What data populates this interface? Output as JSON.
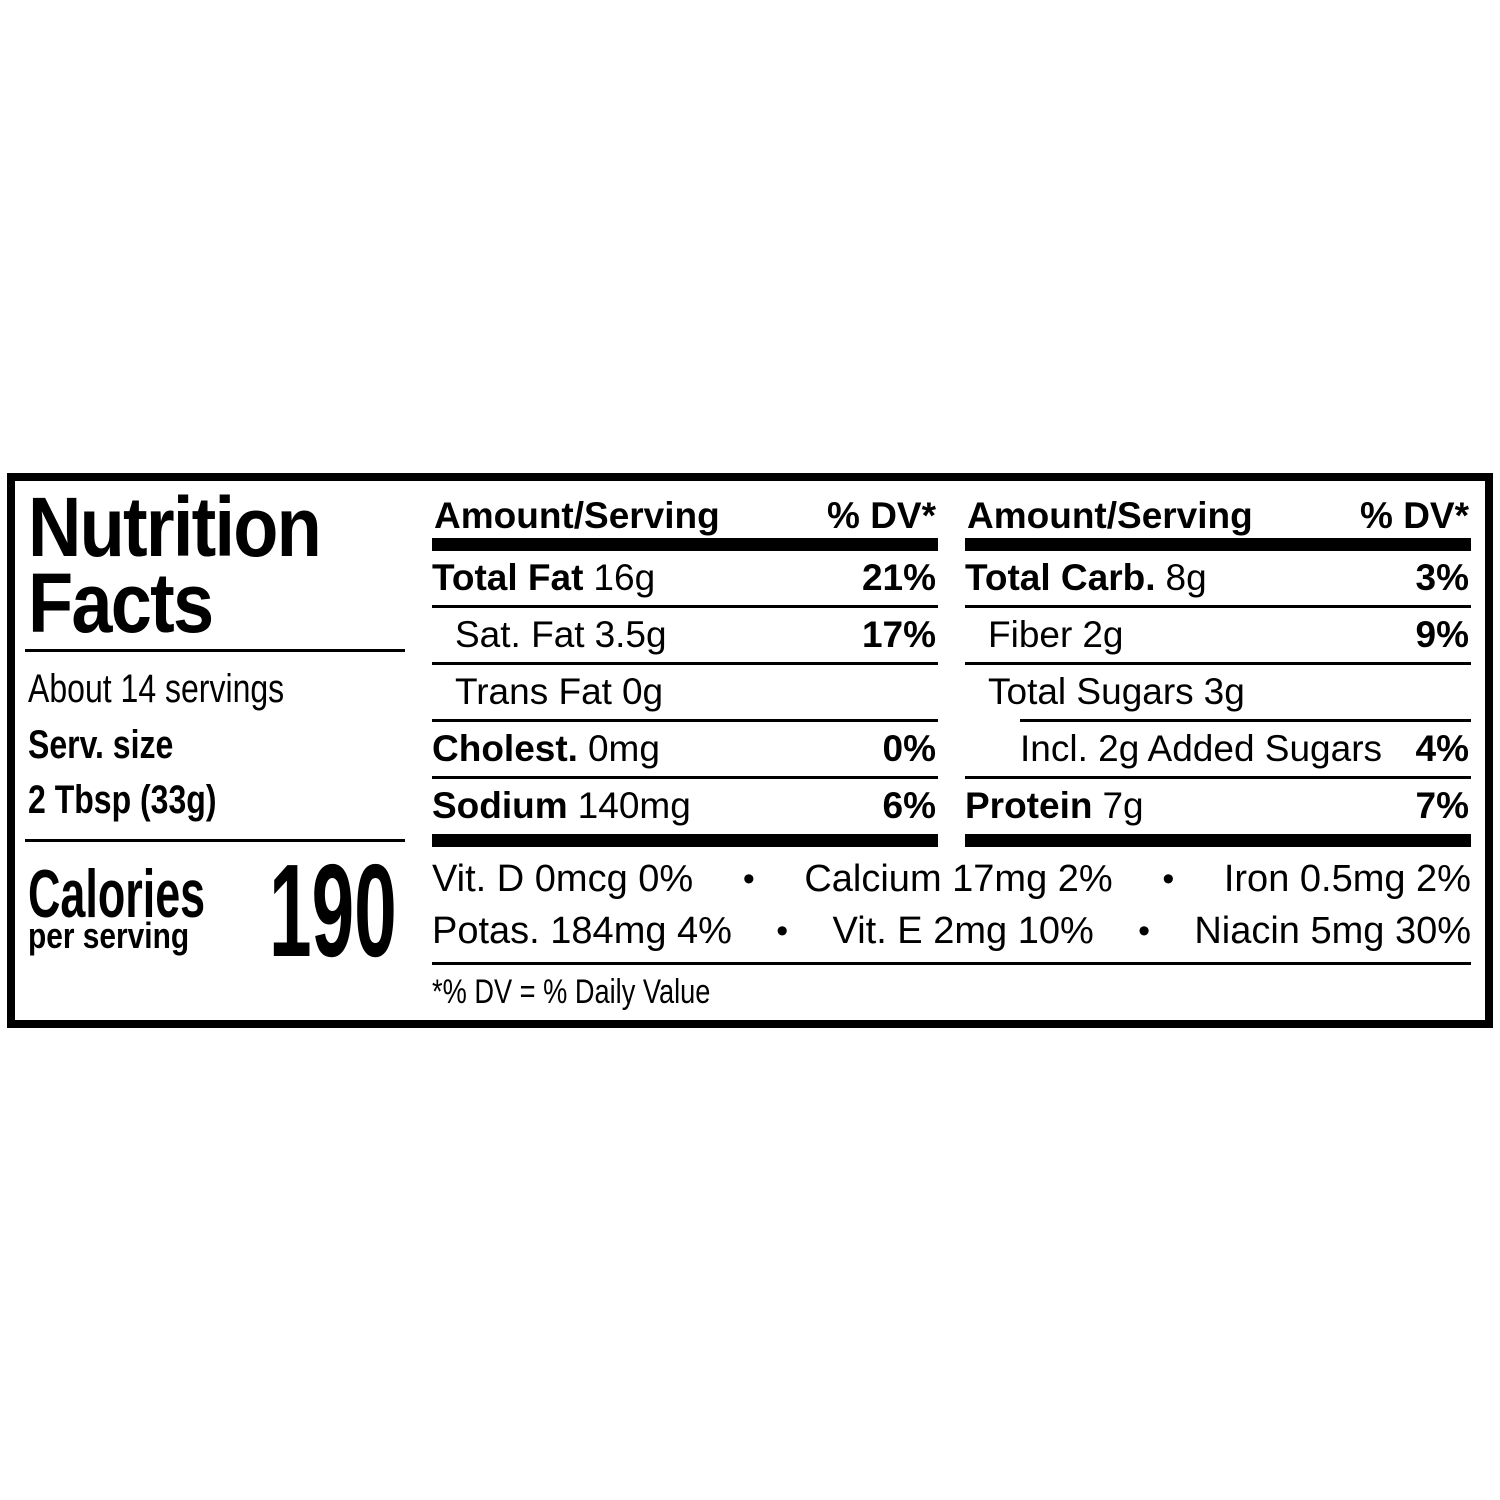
{
  "label": {
    "title_line1": "Nutrition",
    "title_line2": "Facts",
    "servings_per_container": "About 14 servings",
    "serving_size_label": "Serv. size",
    "serving_size_value": "2 Tbsp (33g)",
    "calories_label": "Calories",
    "calories_sublabel": "per serving",
    "calories_value": "190",
    "columns": [
      {
        "header_amount": "Amount/Serving",
        "header_dv": "% DV*",
        "rows": [
          {
            "name": "Total Fat",
            "amount": "16g",
            "dv": "21%"
          },
          {
            "name": "Sat. Fat",
            "amount": "3.5g",
            "dv": "17%"
          },
          {
            "name": "Trans Fat",
            "amount": "0g",
            "dv": ""
          },
          {
            "name": "Cholest.",
            "amount": "0mg",
            "dv": "0%"
          },
          {
            "name": "Sodium",
            "amount": "140mg",
            "dv": "6%"
          }
        ]
      },
      {
        "header_amount": "Amount/Serving",
        "header_dv": "% DV*",
        "rows": [
          {
            "name": "Total Carb.",
            "amount": "8g",
            "dv": "3%"
          },
          {
            "name": "Fiber",
            "amount": "2g",
            "dv": "9%"
          },
          {
            "name": "Total Sugars",
            "amount": "3g",
            "dv": ""
          },
          {
            "name": "Incl. 2g Added Sugars",
            "amount": "",
            "dv": "4%"
          },
          {
            "name": "Protein",
            "amount": "7g",
            "dv": "7%"
          }
        ]
      }
    ],
    "micronutrients": {
      "bullet": "•",
      "row1": [
        "Vit. D 0mcg 0%",
        "Calcium 17mg 2%",
        "Iron 0.5mg 2%"
      ],
      "row2": [
        "Potas. 184mg 4%",
        "Vit. E 2mg 10%",
        "Niacin 5mg 30%"
      ]
    },
    "footnote": "*% DV = % Daily Value",
    "colors": {
      "text": "#000000",
      "background": "#ffffff",
      "border": "#000000"
    }
  }
}
